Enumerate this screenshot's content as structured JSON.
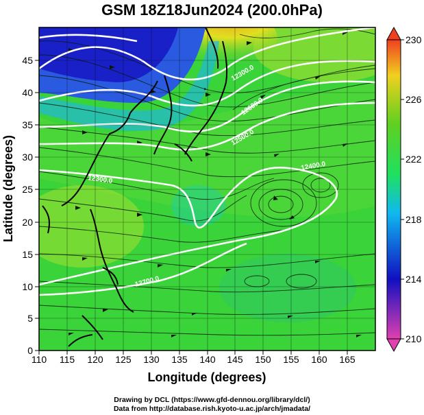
{
  "title": "GSM 18Z18Jun2024 (200.0hPa)",
  "chart_data": {
    "type": "map",
    "xlabel": "Longitude (degrees)",
    "ylabel": "Latitude  (degrees)",
    "xlim": [
      110,
      170
    ],
    "ylim": [
      0,
      50
    ],
    "x_ticks": [
      "110",
      "115",
      "120",
      "125",
      "130",
      "135",
      "140",
      "145",
      "150",
      "155",
      "160",
      "165"
    ],
    "y_ticks": [
      "0",
      "5",
      "10",
      "15",
      "20",
      "25",
      "30",
      "35",
      "40",
      "45"
    ],
    "colorbar": {
      "min": 210,
      "max": 230,
      "tick_labels": [
        "210",
        "214",
        "218",
        "222",
        "226",
        "230"
      ],
      "stops": [
        "#e040b0",
        "#1010c0",
        "#10b8f0",
        "#20e060",
        "#60d020",
        "#f0d020",
        "#f04020"
      ]
    },
    "contour_labels": [
      {
        "text": "12300.0",
        "lon": 124.5,
        "lat": 29.6
      },
      {
        "text": "12400.0",
        "lon": 157.5,
        "lat": 26.8
      },
      {
        "text": "12500.0",
        "lon": 145.5,
        "lat": 35.2
      },
      {
        "text": "12600.0",
        "lon": 147.5,
        "lat": 37.8
      },
      {
        "text": "12700.0",
        "lon": 127.5,
        "lat": 11.5
      },
      {
        "text": "12300.0",
        "lon": 146.5,
        "lat": 40.5
      }
    ],
    "credits": [
      "Drawing by DCL (https://www.gfd-dennou.org/library/dcl/)",
      "Data from http://database.rish.kyoto-u.ac.jp/arch/jmadata/"
    ]
  }
}
